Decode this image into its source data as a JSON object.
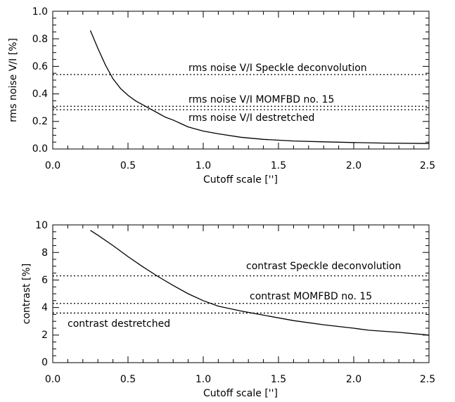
{
  "chart_data": [
    {
      "type": "line",
      "ylabel": "rms noise V/I [%]",
      "xlabel": "Cutoff scale ['']",
      "xlim": [
        0.0,
        2.5
      ],
      "ylim": [
        0.0,
        1.0
      ],
      "xticks": [
        "0.0",
        "0.5",
        "1.0",
        "1.5",
        "2.0",
        "2.5"
      ],
      "yticks": [
        "0.0",
        "0.2",
        "0.4",
        "0.6",
        "0.8",
        "1.0"
      ],
      "grid": false,
      "series": [
        {
          "style": "solid",
          "x": [
            0.25,
            0.3,
            0.35,
            0.4,
            0.45,
            0.5,
            0.55,
            0.6,
            0.65,
            0.7,
            0.75,
            0.8,
            0.9,
            1.0,
            1.1,
            1.25,
            1.4,
            1.6,
            1.8,
            2.0,
            2.2,
            2.5
          ],
          "y": [
            0.86,
            0.73,
            0.61,
            0.51,
            0.44,
            0.39,
            0.35,
            0.32,
            0.29,
            0.26,
            0.23,
            0.21,
            0.16,
            0.13,
            0.11,
            0.085,
            0.07,
            0.058,
            0.052,
            0.047,
            0.043,
            0.04
          ]
        }
      ],
      "reference_lines": [
        {
          "y": 0.54,
          "label": "rms noise V/I Speckle deconvolution"
        },
        {
          "y": 0.31,
          "label": "rms noise V/I MOMFBD no. 15"
        },
        {
          "y": 0.285,
          "label": "rms noise V/I destretched"
        }
      ]
    },
    {
      "type": "line",
      "ylabel": "contrast [%]",
      "xlabel": "Cutoff scale ['']",
      "xlim": [
        0.0,
        2.5
      ],
      "ylim": [
        0,
        10
      ],
      "xticks": [
        "0.0",
        "0.5",
        "1.0",
        "1.5",
        "2.0",
        "2.5"
      ],
      "yticks": [
        "0",
        "2",
        "4",
        "6",
        "8",
        "10"
      ],
      "grid": false,
      "series": [
        {
          "style": "solid",
          "x": [
            0.25,
            0.3,
            0.4,
            0.5,
            0.6,
            0.7,
            0.8,
            0.9,
            1.0,
            1.1,
            1.25,
            1.4,
            1.6,
            1.8,
            2.0,
            2.1,
            2.3,
            2.5
          ],
          "y": [
            9.6,
            9.25,
            8.5,
            7.7,
            6.95,
            6.25,
            5.6,
            5.0,
            4.5,
            4.1,
            3.75,
            3.45,
            3.05,
            2.75,
            2.5,
            2.35,
            2.2,
            2.0
          ]
        }
      ],
      "reference_lines": [
        {
          "y": 6.3,
          "label": "contrast Speckle deconvolution"
        },
        {
          "y": 4.3,
          "label": "contrast MOMFBD no. 15"
        },
        {
          "y": 3.6,
          "label": "contrast destretched"
        }
      ]
    }
  ]
}
